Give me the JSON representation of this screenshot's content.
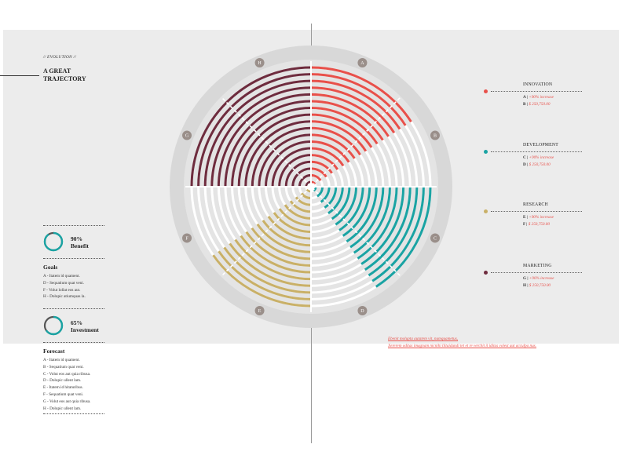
{
  "header": {
    "eyebrow": "// EVOLUTION //",
    "title": "A GREAT\nTRAJECTORY"
  },
  "stats": [
    {
      "value_label": "90%",
      "name": "Benefit",
      "fraction": 0.9,
      "color": "#1aa3a3"
    },
    {
      "value_label": "65%",
      "name": "Investment",
      "fraction": 0.65,
      "color": "#1aa3a3"
    }
  ],
  "goals": {
    "heading": "Goals",
    "items": [
      "A - Itatem id quament.",
      "D - Sequatium quat veni.",
      "F - Volut lollat eos aut.",
      "H - Dolupic atiumquas la."
    ]
  },
  "forecast": {
    "heading": "Forecast",
    "items": [
      "A - Itatem id quament.",
      "B - Sequatium quat veni.",
      "C - Volut eos aut quia ribusa.",
      "D - Dolupic ullent lam.",
      "E - Itatem id hitaturibus.",
      "F - Sequatium quat veni.",
      "G - Volut eos aut quia ribusa.",
      "H - Dolupic ullent lam."
    ]
  },
  "categories": [
    {
      "name": "INNOVATION",
      "color": "#e8504a",
      "rows": [
        {
          "key": "A |",
          "text": "+90% increase",
          "italic_red": true
        },
        {
          "key": "B |",
          "text": "$ 250,750.00",
          "italic_red": true
        }
      ]
    },
    {
      "name": "DEVELOPMENT",
      "color": "#1aa3a3",
      "rows": [
        {
          "key": "C |",
          "text": "+90% increase",
          "italic_red": true
        },
        {
          "key": "D |",
          "text": "$ 250,750.00",
          "italic_red": true
        }
      ]
    },
    {
      "name": "RESEARCH",
      "color": "#c9b067",
      "rows": [
        {
          "key": "E |",
          "text": "+90% increase",
          "italic_red": true
        },
        {
          "key": "F |",
          "text": "$ 250,750.00",
          "italic_red": true
        }
      ]
    },
    {
      "name": "MARKETING",
      "color": "#6e2c3e",
      "rows": [
        {
          "key": "G |",
          "text": "+90% increase",
          "italic_red": true
        },
        {
          "key": "H |",
          "text": "$ 250,750.00",
          "italic_red": true
        }
      ]
    }
  ],
  "footnote": {
    "line1": "Ebenit molupta autatem vit, numquametus,",
    "line2": "Xererem oditas imagnam nicnihi llitaidundi tet et re vercbit il iditas volest aut acculpa nus."
  },
  "chart_data": {
    "type": "radial-bar",
    "rings": 18,
    "spokes": [
      "A",
      "B",
      "C",
      "D",
      "E",
      "F",
      "G",
      "H"
    ],
    "spoke_angles_deg": [
      22.5,
      67.5,
      112.5,
      157.5,
      202.5,
      247.5,
      292.5,
      337.5
    ],
    "series": [
      {
        "name": "INNOVATION",
        "color": "#e8504a",
        "start_deg": 0,
        "end_deg": 57
      },
      {
        "name": "DEVELOPMENT",
        "color": "#1aa3a3",
        "start_deg": 90,
        "end_deg": 147
      },
      {
        "name": "RESEARCH",
        "color": "#c9b067",
        "start_deg": 180,
        "end_deg": 235
      },
      {
        "name": "MARKETING",
        "color": "#6e2c3e",
        "start_deg": 270,
        "end_deg": 360
      }
    ]
  }
}
